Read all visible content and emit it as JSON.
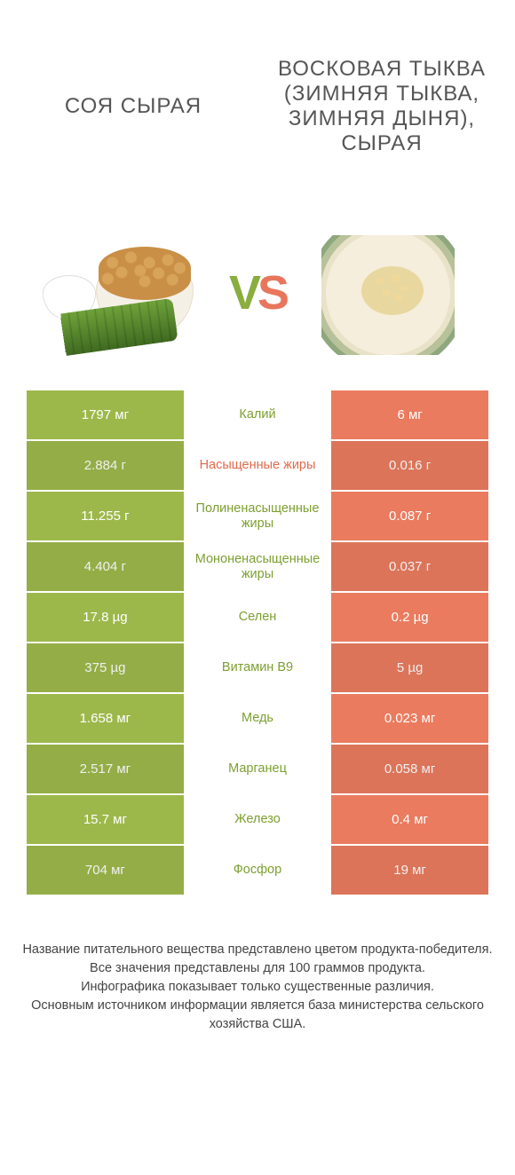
{
  "colors": {
    "green": "#9db84a",
    "orange": "#ea7b5f",
    "mid_green_text": "#7ca030",
    "mid_orange_text": "#e06a4c",
    "row_border": "#ffffff"
  },
  "header": {
    "left_title": "СОЯ СЫРАЯ",
    "right_title": "ВОСКОВАЯ ТЫКВА (ЗИМНЯЯ ТЫКВА, ЗИМНЯЯ ДЫНЯ), СЫРАЯ"
  },
  "vs": {
    "v": "V",
    "s": "S"
  },
  "nutrients": [
    {
      "left": "1797 мг",
      "label": "Калий",
      "right": "6 мг",
      "winner": "left"
    },
    {
      "left": "2.884 г",
      "label": "Насыщенные жиры",
      "right": "0.016 г",
      "winner": "right"
    },
    {
      "left": "11.255 г",
      "label": "Полиненасыщенные жиры",
      "right": "0.087 г",
      "winner": "left"
    },
    {
      "left": "4.404 г",
      "label": "Мононенасыщенные жиры",
      "right": "0.037 г",
      "winner": "left"
    },
    {
      "left": "17.8 µg",
      "label": "Селен",
      "right": "0.2 µg",
      "winner": "left"
    },
    {
      "left": "375 µg",
      "label": "Витамин B9",
      "right": "5 µg",
      "winner": "left"
    },
    {
      "left": "1.658 мг",
      "label": "Медь",
      "right": "0.023 мг",
      "winner": "left"
    },
    {
      "left": "2.517 мг",
      "label": "Марганец",
      "right": "0.058 мг",
      "winner": "left"
    },
    {
      "left": "15.7 мг",
      "label": "Железо",
      "right": "0.4 мг",
      "winner": "left"
    },
    {
      "left": "704 мг",
      "label": "Фосфор",
      "right": "19 мг",
      "winner": "left"
    }
  ],
  "footer_lines": [
    "Название питательного вещества представлено цветом продукта-победителя.",
    "Все значения представлены для 100 граммов продукта.",
    "Инфографика показывает только существенные различия.",
    "Основным источником информации является база министерства сельского хозяйства США."
  ]
}
